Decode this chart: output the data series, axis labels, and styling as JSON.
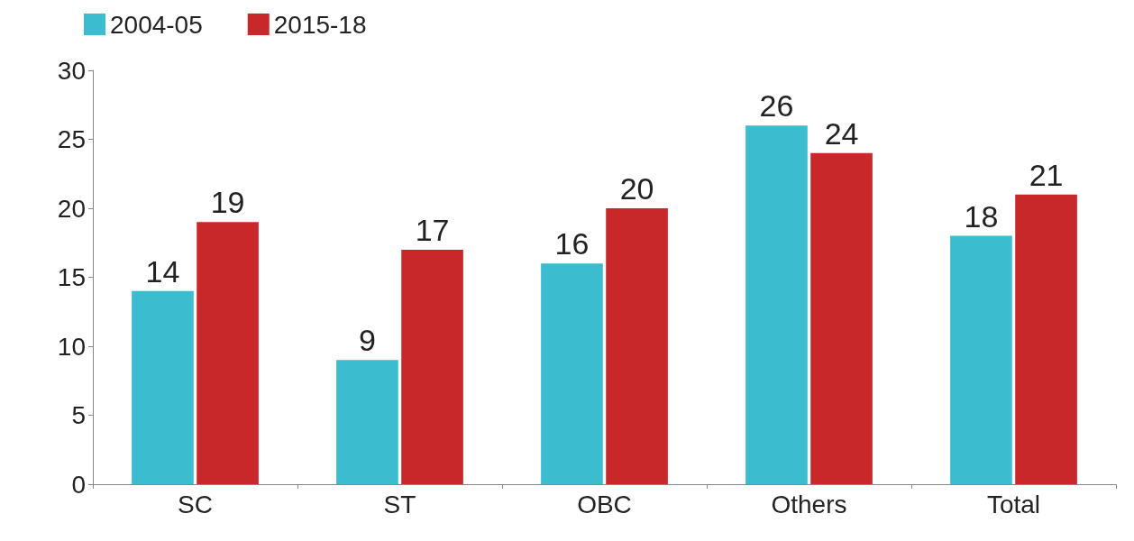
{
  "chart_data": {
    "type": "bar",
    "categories": [
      "SC",
      "ST",
      "OBC",
      "Others",
      "Total"
    ],
    "series": [
      {
        "name": "2004-05",
        "color": "#3bbccf",
        "values": [
          14,
          9,
          16,
          26,
          18
        ]
      },
      {
        "name": "2015-18",
        "color": "#c8282a",
        "values": [
          19,
          17,
          20,
          24,
          21
        ]
      }
    ],
    "ylim": [
      0,
      30
    ],
    "yticks": [
      0,
      5,
      10,
      15,
      20,
      25,
      30
    ],
    "grid": false,
    "legend": "top left",
    "data_labels": true
  }
}
